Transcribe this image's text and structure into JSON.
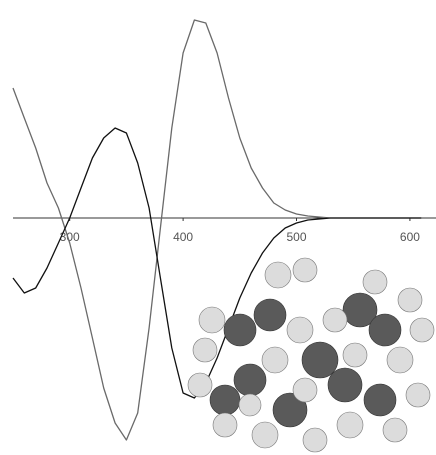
{
  "chart_data": {
    "type": "line",
    "x": [
      250,
      260,
      270,
      280,
      290,
      300,
      310,
      320,
      330,
      340,
      350,
      360,
      370,
      380,
      390,
      400,
      410,
      420,
      430,
      440,
      450,
      460,
      470,
      480,
      490,
      500,
      510,
      520,
      530,
      540,
      550,
      560,
      570,
      580,
      590,
      600,
      610
    ],
    "series": [
      {
        "color": "#6a6a6a",
        "values": [
          130,
          100,
          70,
          35,
          10,
          -25,
          -70,
          -120,
          -170,
          -205,
          -222,
          -195,
          -110,
          -10,
          90,
          165,
          198,
          195,
          165,
          120,
          80,
          50,
          30,
          15,
          8,
          4,
          2,
          1,
          0,
          0,
          0,
          0,
          0,
          0,
          0,
          0,
          0
        ]
      },
      {
        "color": "#111111",
        "values": [
          -60,
          -75,
          -70,
          -50,
          -25,
          0,
          30,
          60,
          80,
          90,
          85,
          55,
          10,
          -60,
          -130,
          -175,
          -180,
          -165,
          -140,
          -110,
          -80,
          -55,
          -35,
          -20,
          -10,
          -5,
          -2,
          -1,
          0,
          0,
          0,
          0,
          0,
          0,
          0,
          0,
          0
        ]
      }
    ],
    "xlim": [
      250,
      623
    ],
    "xticks": [
      300,
      400,
      500,
      600
    ],
    "ylim": [
      -237,
      218
    ]
  }
}
